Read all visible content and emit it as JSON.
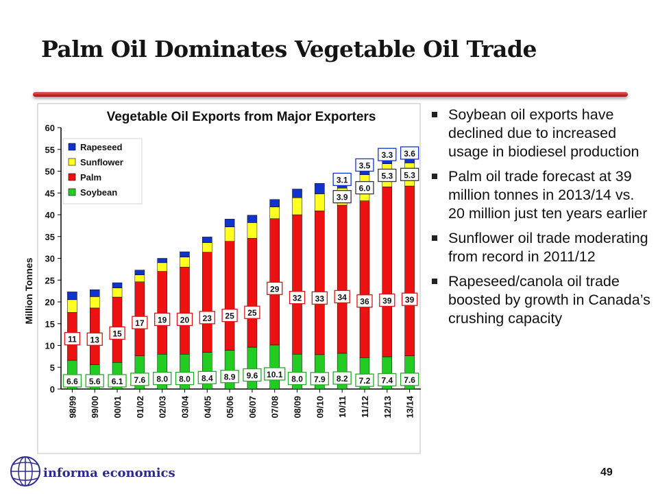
{
  "slide": {
    "title": "Palm Oil Dominates Vegetable Oil Trade",
    "page_number": "49",
    "logo_text": "informa economics",
    "bullets": [
      "Soybean oil exports have declined due to increased usage in biodiesel production",
      "Palm oil trade forecast at 39 million tonnes in 2013/14 vs. 20 million just ten years earlier",
      "Sunflower oil trade moderating from record in 2011/12",
      "Rapeseed/canola oil trade boosted by growth in Canada’s crushing capacity"
    ]
  },
  "chart_data": {
    "type": "bar",
    "stacked": true,
    "title": "Vegetable Oil Exports from Major Exporters",
    "ylabel": "Million Tonnes",
    "xlabel": "",
    "ylim": [
      0,
      60
    ],
    "yticks": [
      0,
      5,
      10,
      15,
      20,
      25,
      30,
      35,
      40,
      45,
      50,
      55,
      60
    ],
    "legend_position": "top-left",
    "categories": [
      "98/99",
      "99/00",
      "00/01",
      "01/02",
      "02/03",
      "03/04",
      "04/05",
      "05/06",
      "06/07",
      "07/08",
      "08/09",
      "09/10",
      "10/11",
      "11/12",
      "12/13",
      "13/14"
    ],
    "series": [
      {
        "name": "Soybean",
        "color": "#22cc22",
        "values": [
          6.6,
          5.6,
          6.1,
          7.6,
          8.0,
          8.0,
          8.4,
          8.9,
          9.6,
          10.1,
          8.0,
          7.9,
          8.2,
          7.2,
          7.4,
          7.6
        ]
      },
      {
        "name": "Palm",
        "color": "#ee1111",
        "values": [
          11,
          13,
          15,
          17,
          19,
          20,
          23,
          25,
          25,
          29,
          32,
          33,
          34,
          36,
          39,
          39
        ]
      },
      {
        "name": "Sunflower",
        "color": "#ffff22",
        "values": [
          2.9,
          2.6,
          2.1,
          1.6,
          2.0,
          2.3,
          2.2,
          3.3,
          3.6,
          2.7,
          3.9,
          3.9,
          3.9,
          6.0,
          5.3,
          5.3
        ]
      },
      {
        "name": "Rapeseed",
        "color": "#1133cc",
        "values": [
          1.8,
          1.6,
          1.2,
          1.1,
          1.0,
          1.2,
          1.3,
          1.8,
          1.7,
          1.7,
          2.0,
          2.4,
          3.1,
          3.5,
          3.3,
          3.6
        ]
      }
    ],
    "labels": {
      "Soybean": [
        "6.6",
        "5.6",
        "6.1",
        "7.6",
        "8.0",
        "8.0",
        "8.4",
        "8.9",
        "9.6",
        "10.1",
        "8.0",
        "7.9",
        "8.2",
        "7.2",
        "7.4",
        "7.6"
      ],
      "Palm": [
        "11",
        "13",
        "15",
        "17",
        "19",
        "20",
        "23",
        "25",
        "25",
        "29",
        "32",
        "33",
        "34",
        "36",
        "39",
        "39"
      ],
      "Sunflower": [
        "",
        "",
        "",
        "",
        "",
        "",
        "",
        "",
        "",
        "",
        "",
        "",
        "3.9",
        "6.0",
        "5.3",
        "5.3"
      ],
      "Rapeseed": [
        "",
        "",
        "",
        "",
        "",
        "",
        "",
        "",
        "",
        "",
        "",
        "",
        "3.1",
        "3.5",
        "3.3",
        "3.6"
      ]
    },
    "legend_order": [
      "Rapeseed",
      "Sunflower",
      "Palm",
      "Soybean"
    ]
  }
}
